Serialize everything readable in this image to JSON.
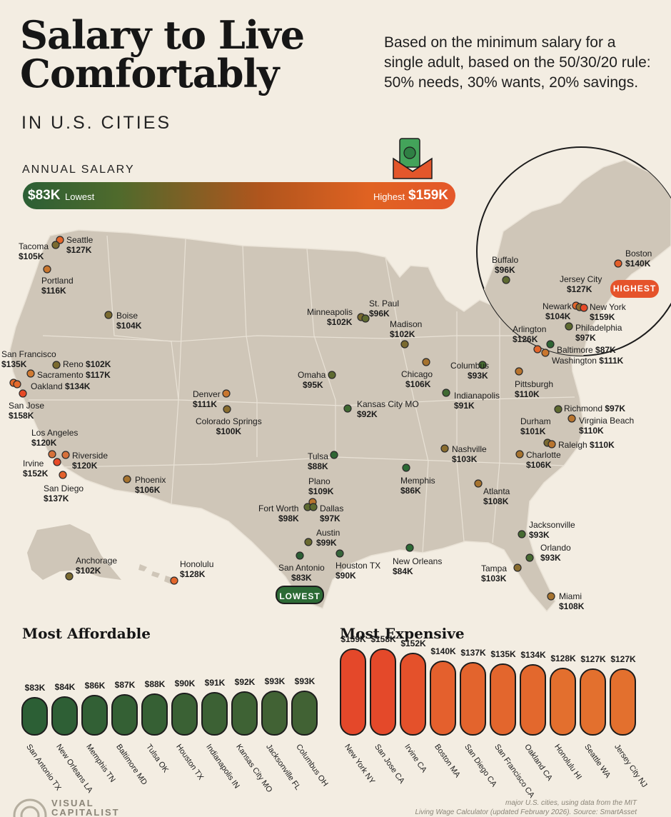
{
  "header": {
    "title_line1": "Salary to Live",
    "title_line2": "Comfortably",
    "subtitle": "IN U.S. CITIES",
    "description": "Based on the minimum salary for a single adult, based on the 50/30/20 rule: 50% needs, 30% wants, 20% savings."
  },
  "scale": {
    "label": "ANNUAL SALARY",
    "low_value": "$83K",
    "low_text": "Lowest",
    "high_text": "Highest",
    "high_value": "$159K"
  },
  "map": {
    "cities": [
      {
        "name": "Seattle",
        "value": "$127K"
      },
      {
        "name": "Tacoma",
        "value": "$105K"
      },
      {
        "name": "Portland",
        "value": "$116K"
      },
      {
        "name": "Boise",
        "value": "$104K"
      },
      {
        "name": "San Francisco",
        "value": "$135K"
      },
      {
        "name": "Reno",
        "value": "$102K"
      },
      {
        "name": "Sacramento",
        "value": "$117K"
      },
      {
        "name": "Oakland",
        "value": "$134K"
      },
      {
        "name": "San Jose",
        "value": "$158K"
      },
      {
        "name": "Los Angeles",
        "value": "$120K"
      },
      {
        "name": "Riverside",
        "value": "$120K"
      },
      {
        "name": "Irvine",
        "value": "$152K"
      },
      {
        "name": "San Diego",
        "value": "$137K"
      },
      {
        "name": "Phoenix",
        "value": "$106K"
      },
      {
        "name": "Denver",
        "value": "$111K"
      },
      {
        "name": "Colorado Springs",
        "value": "$100K"
      },
      {
        "name": "Minneapolis",
        "value": "$102K"
      },
      {
        "name": "St. Paul",
        "value": "$96K"
      },
      {
        "name": "Madison",
        "value": "$102K"
      },
      {
        "name": "Omaha",
        "value": "$95K"
      },
      {
        "name": "Chicago",
        "value": "$106K"
      },
      {
        "name": "Kansas City MO",
        "value": "$92K"
      },
      {
        "name": "Columbus",
        "value": "$93K"
      },
      {
        "name": "Indianapolis",
        "value": "$91K"
      },
      {
        "name": "Pittsburgh",
        "value": "$110K"
      },
      {
        "name": "Tulsa",
        "value": "$88K"
      },
      {
        "name": "Plano",
        "value": "$109K"
      },
      {
        "name": "Fort Worth",
        "value": "$98K"
      },
      {
        "name": "Dallas",
        "value": "$97K"
      },
      {
        "name": "Austin",
        "value": "$99K"
      },
      {
        "name": "San Antonio",
        "value": "$83K"
      },
      {
        "name": "Houston TX",
        "value": "$90K"
      },
      {
        "name": "Memphis",
        "value": "$86K"
      },
      {
        "name": "Nashville",
        "value": "$103K"
      },
      {
        "name": "Atlanta",
        "value": "$108K"
      },
      {
        "name": "New Orleans",
        "value": "$84K"
      },
      {
        "name": "Richmond",
        "value": "$97K"
      },
      {
        "name": "Virginia Beach",
        "value": "$110K"
      },
      {
        "name": "Durham",
        "value": "$101K"
      },
      {
        "name": "Raleigh",
        "value": "$110K"
      },
      {
        "name": "Charlotte",
        "value": "$106K"
      },
      {
        "name": "Jacksonville",
        "value": "$93K"
      },
      {
        "name": "Orlando",
        "value": "$93K"
      },
      {
        "name": "Tampa",
        "value": "$103K"
      },
      {
        "name": "Miami",
        "value": "$108K"
      },
      {
        "name": "Anchorage",
        "value": "$102K"
      },
      {
        "name": "Honolulu",
        "value": "$128K"
      }
    ],
    "inset_cities": [
      {
        "name": "Buffalo",
        "value": "$96K"
      },
      {
        "name": "Boston",
        "value": "$140K"
      },
      {
        "name": "Jersey City",
        "value": "$127K"
      },
      {
        "name": "Newark",
        "value": "$104K"
      },
      {
        "name": "New York",
        "value": "$159K"
      },
      {
        "name": "Philadelphia",
        "value": "$97K"
      },
      {
        "name": "Arlington",
        "value": "$126K"
      },
      {
        "name": "Baltimore",
        "value": "$87K"
      },
      {
        "name": "Washington",
        "value": "$111K"
      }
    ],
    "lowest_badge": "LOWEST",
    "highest_badge": "HIGHEST"
  },
  "affordable": {
    "title": "Most Affordable",
    "items": [
      {
        "name": "San Antonio TX",
        "value": "$83K"
      },
      {
        "name": "New Orleans LA",
        "value": "$84K"
      },
      {
        "name": "Memphis TN",
        "value": "$86K"
      },
      {
        "name": "Baltimore MD",
        "value": "$87K"
      },
      {
        "name": "Tulsa OK",
        "value": "$88K"
      },
      {
        "name": "Houston TX",
        "value": "$90K"
      },
      {
        "name": "Indianapolis IN",
        "value": "$91K"
      },
      {
        "name": "Kansas City MO",
        "value": "$92K"
      },
      {
        "name": "Jacksonville FL",
        "value": "$93K"
      },
      {
        "name": "Columbus OH",
        "value": "$93K"
      }
    ]
  },
  "expensive": {
    "title": "Most Expensive",
    "items": [
      {
        "name": "New York NY",
        "value": "$159K"
      },
      {
        "name": "San Jose CA",
        "value": "$158K"
      },
      {
        "name": "Irvine CA",
        "value": "$152K"
      },
      {
        "name": "Boston MA",
        "value": "$140K"
      },
      {
        "name": "San Diego CA",
        "value": "$137K"
      },
      {
        "name": "San Francisco CA",
        "value": "$135K"
      },
      {
        "name": "Oakland CA",
        "value": "$134K"
      },
      {
        "name": "Honolulu HI",
        "value": "$128K"
      },
      {
        "name": "Seattle WA",
        "value": "$127K"
      },
      {
        "name": "Jersey City NJ",
        "value": "$127K"
      }
    ]
  },
  "footer": {
    "source_line1": "major U.S. cities, using data from the MIT",
    "source_line2": "Living Wage Calculator (updated February 2026). Source: SmartAsset",
    "brand_line1": "VISUAL",
    "brand_line2": "CAPITALIST"
  },
  "colors": {
    "low": "#2c5f35",
    "high": "#e4582a",
    "land": "#cfc6b8",
    "background": "#f3ede2"
  }
}
